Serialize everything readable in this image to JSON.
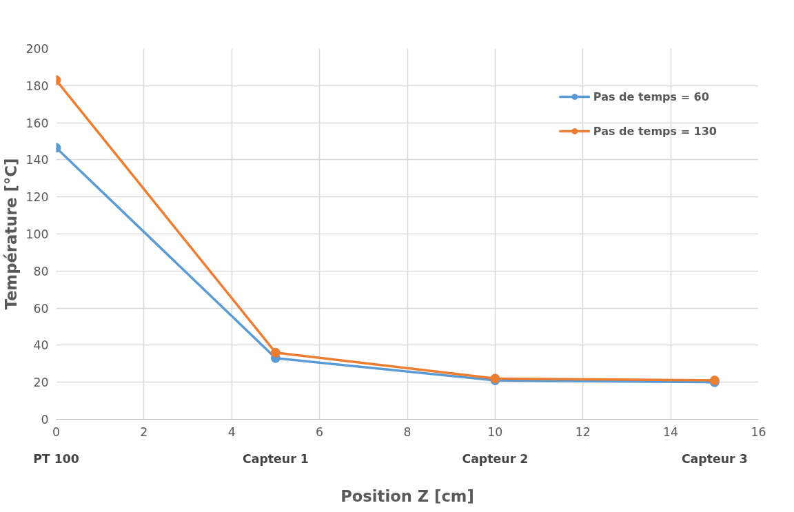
{
  "chart_data": {
    "type": "line",
    "xlabel": "Position Z [cm]",
    "ylabel": "Température [°C]",
    "x": [
      0,
      5,
      10,
      15
    ],
    "series": [
      {
        "name": "Pas de temps = 60",
        "color": "#5b9bd5",
        "values": [
          146.5,
          33,
          21,
          20
        ]
      },
      {
        "name": "Pas de temps = 130",
        "color": "#ed7d31",
        "values": [
          183,
          36,
          22,
          21
        ]
      }
    ],
    "xlim": [
      0,
      16
    ],
    "xticks": [
      0,
      2,
      4,
      6,
      8,
      10,
      12,
      14,
      16
    ],
    "ylim": [
      0,
      200
    ],
    "yticks": [
      0,
      20,
      40,
      60,
      80,
      100,
      120,
      140,
      160,
      180,
      200
    ],
    "annotations": [
      "PT 100",
      "Capteur 1",
      "Capteur 2",
      "Capteur 3"
    ],
    "grid": true,
    "legend": "top right",
    "marker": "circle",
    "line_style": "solid"
  }
}
